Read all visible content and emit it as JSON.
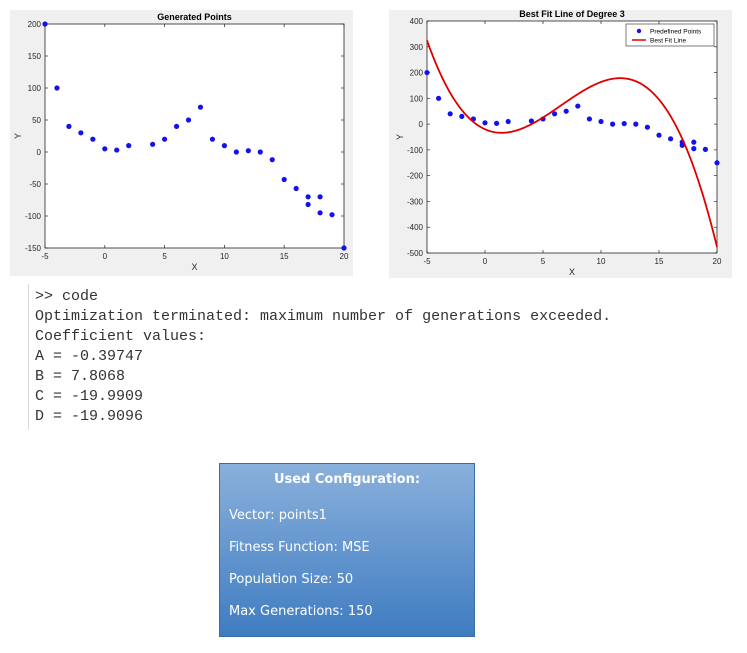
{
  "colors": {
    "points": "#1212ee",
    "fit_line": "#e00000",
    "axes_bg": "#ffffff",
    "figure_bg": "#f0f0f0",
    "config_top": "#8ab0dc",
    "config_bottom": "#3f7cc1"
  },
  "chart_data": [
    {
      "type": "scatter",
      "title": "Generated Points",
      "xlabel": "X",
      "ylabel": "Y",
      "xlim": [
        -5,
        20
      ],
      "ylim": [
        -150,
        200
      ],
      "xticks": [
        -5,
        0,
        5,
        10,
        15,
        20
      ],
      "yticks": [
        -150,
        -100,
        -50,
        0,
        50,
        100,
        150,
        200
      ],
      "grid": false,
      "series": [
        {
          "x": [
            -5,
            -4,
            -3,
            -2,
            -1,
            0,
            1,
            2,
            4,
            5,
            6,
            7,
            8,
            9,
            10,
            11,
            12,
            13,
            14,
            15,
            16,
            17,
            17,
            18,
            18,
            19,
            20
          ],
          "y": [
            200,
            100,
            40,
            30,
            20,
            5,
            3,
            10,
            12,
            20,
            40,
            50,
            70,
            20,
            10,
            0,
            2,
            0,
            -12,
            -43,
            -57,
            -70,
            -82,
            -70,
            -95,
            -98,
            -150
          ]
        }
      ]
    },
    {
      "type": "line",
      "title": "Best Fit Line of Degree 3",
      "xlabel": "X",
      "ylabel": "Y",
      "xlim": [
        -5,
        20
      ],
      "ylim": [
        -500,
        400
      ],
      "xticks": [
        -5,
        0,
        5,
        10,
        15,
        20
      ],
      "yticks": [
        -500,
        -400,
        -300,
        -200,
        -100,
        0,
        100,
        200,
        300,
        400
      ],
      "grid": false,
      "legend_position": "top-right",
      "series": [
        {
          "name": "Predefined Points",
          "kind": "scatter",
          "x": [
            -5,
            -4,
            -3,
            -2,
            -1,
            0,
            1,
            2,
            4,
            5,
            6,
            7,
            8,
            9,
            10,
            11,
            12,
            13,
            14,
            15,
            16,
            17,
            17,
            18,
            18,
            19,
            20
          ],
          "y": [
            200,
            100,
            40,
            30,
            20,
            5,
            3,
            10,
            12,
            20,
            40,
            50,
            70,
            20,
            10,
            0,
            2,
            0,
            -12,
            -43,
            -57,
            -70,
            -82,
            -70,
            -95,
            -98,
            -150
          ]
        },
        {
          "name": "Best Fit Line",
          "kind": "line",
          "coefficients": [
            -0.39747,
            7.8068,
            -19.9909,
            -19.9096
          ]
        }
      ]
    }
  ],
  "console": {
    "prompt_line": ">> code",
    "message": "Optimization terminated: maximum number of generations exceeded.",
    "coef_header": "Coefficient values:",
    "coef_lines": [
      "A = -0.39747",
      "B = 7.8068",
      "C = -19.9909",
      "D = -19.9096"
    ]
  },
  "config": {
    "title": "Used Configuration:",
    "lines": [
      "Vector: points1",
      "Fitness Function: MSE",
      "Population Size: 50",
      "Max Generations: 150"
    ]
  }
}
